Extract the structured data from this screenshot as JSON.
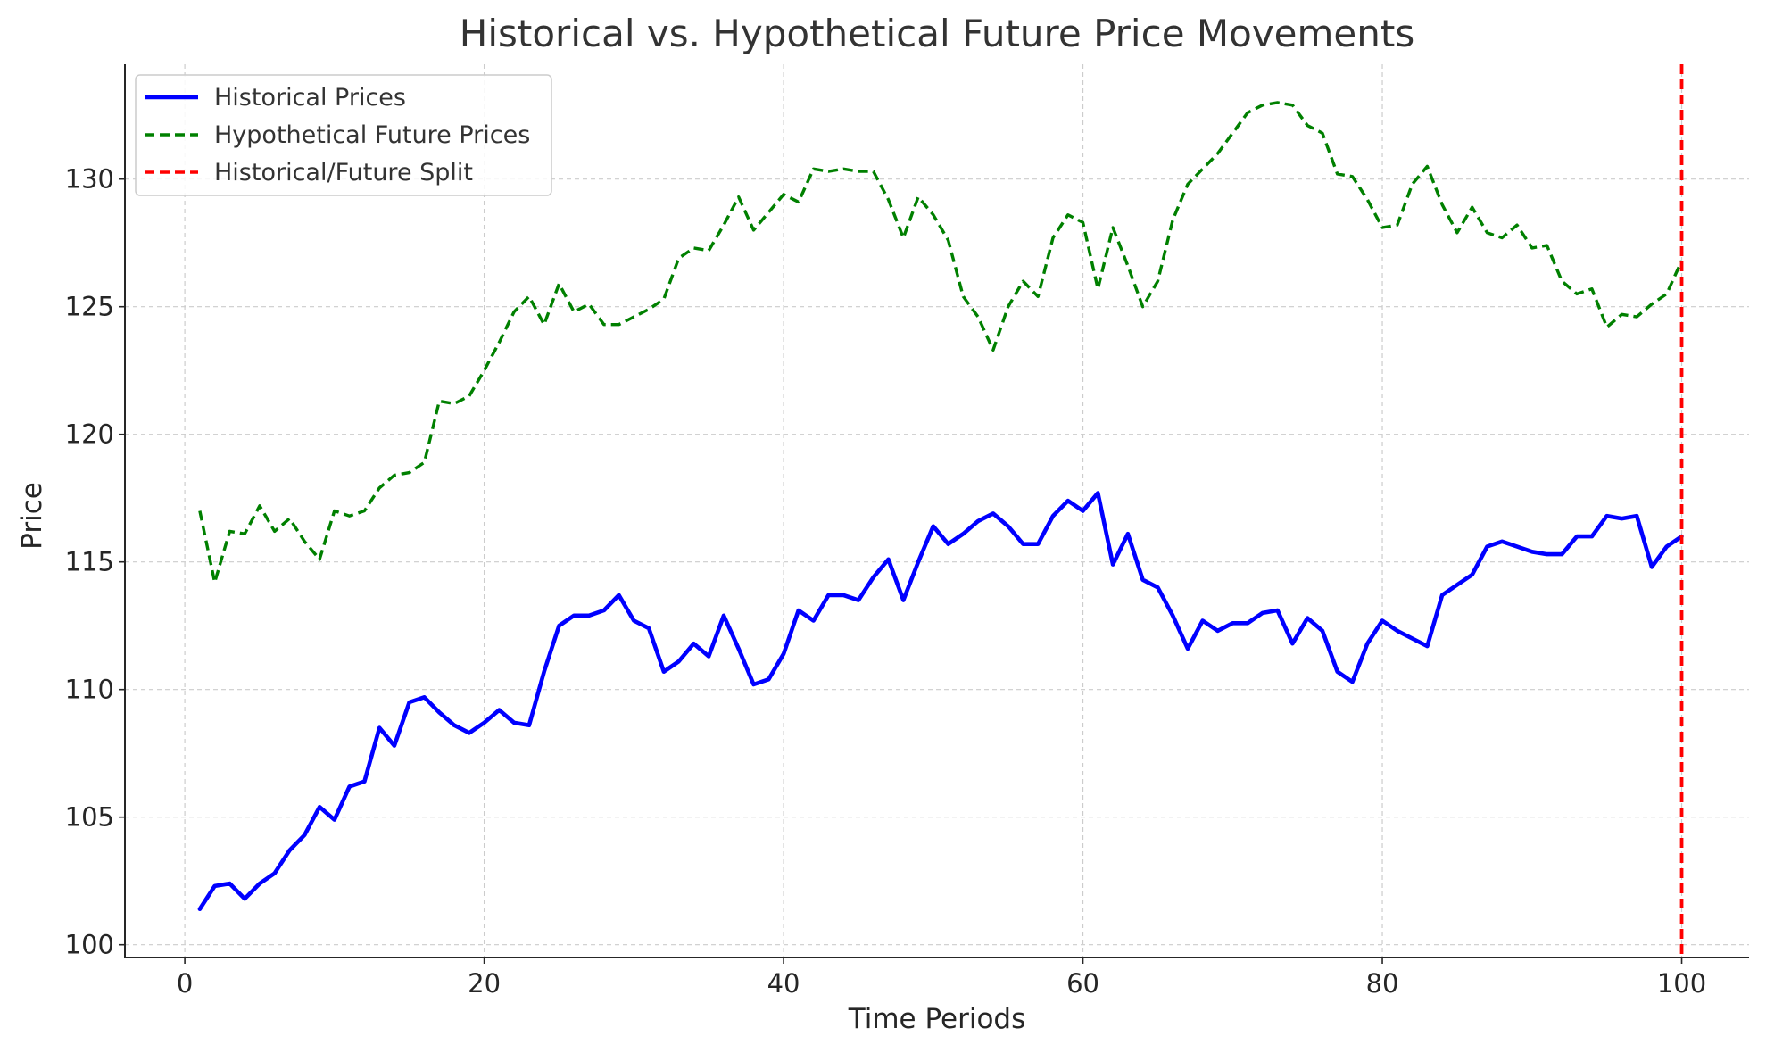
{
  "chart_data": {
    "type": "line",
    "title": "Historical vs. Hypothetical Future Price Movements",
    "xlabel": "Time Periods",
    "ylabel": "Price",
    "xlim": [
      -4,
      104.5
    ],
    "ylim": [
      99.5,
      134.5
    ],
    "x_ticks": [
      0,
      20,
      40,
      60,
      80,
      100
    ],
    "y_ticks": [
      100,
      105,
      110,
      115,
      120,
      125,
      130
    ],
    "grid": true,
    "legend_position": "top-left",
    "x": [
      1,
      2,
      3,
      4,
      5,
      6,
      7,
      8,
      9,
      10,
      11,
      12,
      13,
      14,
      15,
      16,
      17,
      18,
      19,
      20,
      21,
      22,
      23,
      24,
      25,
      26,
      27,
      28,
      29,
      30,
      31,
      32,
      33,
      34,
      35,
      36,
      37,
      38,
      39,
      40,
      41,
      42,
      43,
      44,
      45,
      46,
      47,
      48,
      49,
      50,
      51,
      52,
      53,
      54,
      55,
      56,
      57,
      58,
      59,
      60,
      61,
      62,
      63,
      64,
      65,
      66,
      67,
      68,
      69,
      70,
      71,
      72,
      73,
      74,
      75,
      76,
      77,
      78,
      79,
      80,
      81,
      82,
      83,
      84,
      85,
      86,
      87,
      88,
      89,
      90,
      91,
      92,
      93,
      94,
      95,
      96,
      97,
      98,
      99,
      100
    ],
    "series": [
      {
        "name": "Historical Prices",
        "color": "#0000ff",
        "style": "solid",
        "values": [
          101.4,
          102.3,
          102.4,
          101.8,
          102.4,
          102.8,
          103.7,
          104.3,
          105.4,
          104.9,
          106.2,
          106.4,
          108.5,
          107.8,
          109.5,
          109.7,
          109.1,
          108.6,
          108.3,
          108.7,
          109.2,
          108.7,
          108.6,
          110.7,
          112.5,
          112.9,
          112.9,
          113.1,
          113.7,
          112.7,
          112.4,
          110.7,
          111.1,
          111.8,
          111.3,
          112.9,
          111.6,
          110.2,
          110.4,
          111.4,
          113.1,
          112.7,
          113.7,
          113.7,
          113.5,
          114.4,
          115.1,
          113.5,
          115.0,
          116.4,
          115.7,
          116.1,
          116.6,
          116.9,
          116.4,
          115.7,
          115.7,
          116.8,
          117.4,
          117.0,
          117.7,
          114.9,
          116.1,
          114.3,
          114.0,
          112.9,
          111.6,
          112.7,
          112.3,
          112.6,
          112.6,
          113.0,
          113.1,
          111.8,
          112.8,
          112.3,
          110.7,
          110.3,
          111.8,
          112.7,
          112.3,
          112.0,
          111.7,
          113.7,
          114.1,
          114.5,
          115.6,
          115.8,
          115.6,
          115.4,
          115.3,
          115.3,
          116.0,
          116.0,
          116.8,
          116.7,
          116.8,
          114.8,
          115.6,
          116.0
        ]
      },
      {
        "name": "Hypothetical Future Prices",
        "color": "#008000",
        "style": "dashed",
        "values": [
          117.0,
          114.2,
          116.2,
          116.1,
          117.2,
          116.2,
          116.7,
          115.8,
          115.1,
          117.0,
          116.8,
          117.0,
          117.9,
          118.4,
          118.5,
          118.9,
          121.3,
          121.2,
          121.5,
          122.5,
          123.6,
          124.8,
          125.4,
          124.3,
          125.9,
          124.8,
          125.1,
          124.3,
          124.3,
          124.6,
          124.9,
          125.3,
          126.9,
          127.3,
          127.2,
          128.2,
          129.3,
          128.0,
          128.7,
          129.4,
          129.1,
          130.4,
          130.3,
          130.4,
          130.3,
          130.3,
          129.2,
          127.7,
          129.3,
          128.6,
          127.6,
          125.4,
          124.6,
          123.3,
          125.0,
          126.0,
          125.4,
          127.7,
          128.6,
          128.3,
          125.7,
          128.1,
          126.6,
          125.0,
          126.0,
          128.4,
          129.8,
          130.4,
          131.0,
          131.8,
          132.6,
          132.9,
          133.0,
          132.9,
          132.1,
          131.8,
          130.2,
          130.1,
          129.2,
          128.1,
          128.2,
          129.8,
          130.5,
          129.0,
          127.9,
          128.9,
          127.9,
          127.7,
          128.2,
          127.3,
          127.4,
          126.0,
          125.5,
          125.7,
          124.2,
          124.7,
          124.6,
          125.1,
          125.5,
          126.8
        ]
      }
    ],
    "split": {
      "name": "Historical/Future Split",
      "x": 100,
      "color": "#ff0000",
      "style": "dashed"
    }
  }
}
